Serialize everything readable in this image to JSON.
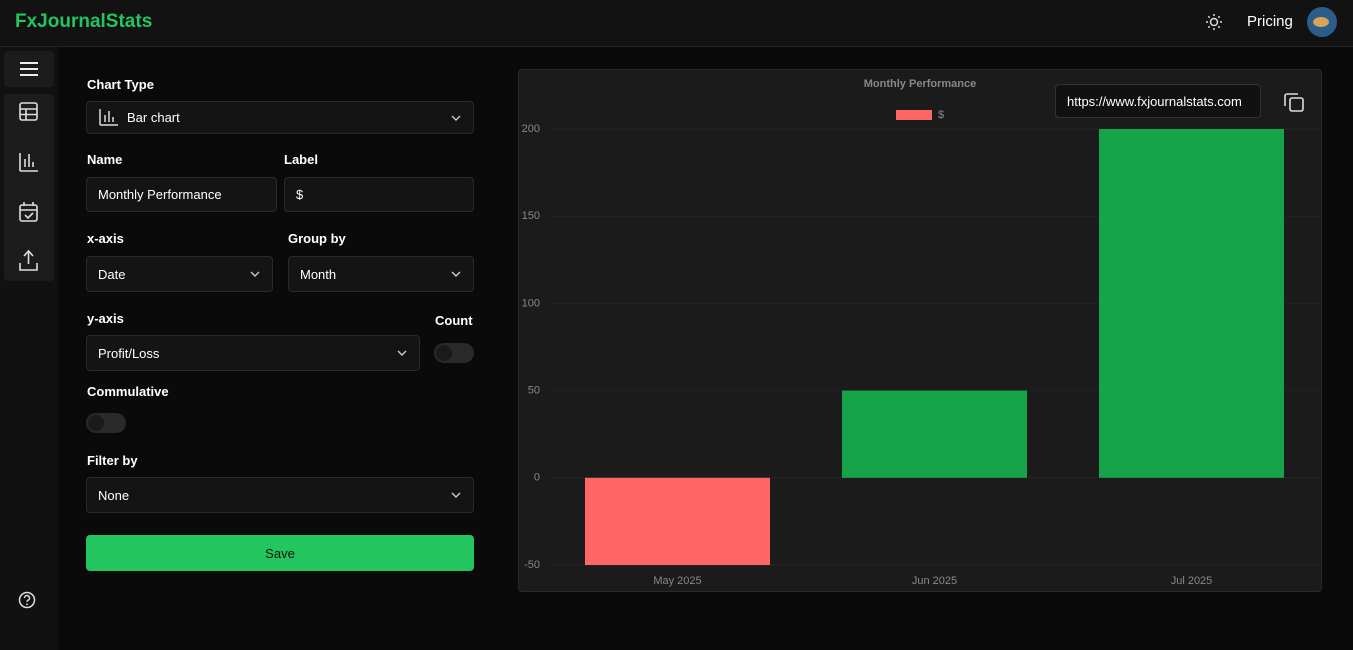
{
  "header": {
    "brand": "FxJournalStats",
    "pricing": "Pricing"
  },
  "form": {
    "chart_type": {
      "label": "Chart Type",
      "value": "Bar chart"
    },
    "name": {
      "label": "Name",
      "value": "Monthly Performance"
    },
    "label": {
      "label": "Label",
      "value": "$"
    },
    "x_axis": {
      "label": "x-axis",
      "value": "Date"
    },
    "group_by": {
      "label": "Group by",
      "value": "Month"
    },
    "y_axis": {
      "label": "y-axis",
      "value": "Profit/Loss"
    },
    "count": {
      "label": "Count"
    },
    "cumulative": {
      "label": "Commulative"
    },
    "filter_by": {
      "label": "Filter by",
      "value": "None"
    },
    "save": "Save"
  },
  "share_url": "https://www.fxjournalstats.com",
  "chart_data": {
    "type": "bar",
    "title": "Monthly Performance",
    "categories": [
      "May 2025",
      "Jun 2025",
      "Jul 2025"
    ],
    "series": [
      {
        "name": "$",
        "color": "#ff6666",
        "colors": [
          "#ff6666",
          "#16a34a",
          "#16a34a"
        ],
        "values": [
          -50,
          50,
          200
        ]
      }
    ],
    "ylim": [
      -50,
      200
    ],
    "yticks": [
      -50,
      0,
      50,
      100,
      150,
      200
    ],
    "grid": true
  }
}
